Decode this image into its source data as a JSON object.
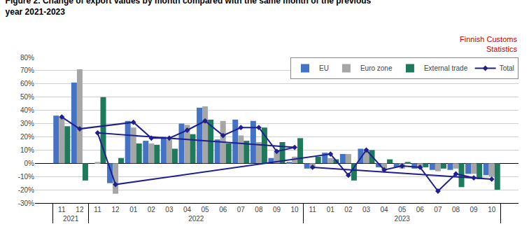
{
  "chart_data": {
    "type": "bar",
    "title": "Figure 2. Change of export values by month compared with the same month of the previous\nyear 2021-2023",
    "annotations": [
      {
        "text": "Finnish Customs\nStatistics",
        "color": "#CC0000"
      }
    ],
    "categories": [
      "11",
      "12",
      "01",
      "02",
      "03",
      "04",
      "05",
      "06",
      "07",
      "08",
      "09",
      "10",
      "11",
      "12",
      "01",
      "02",
      "03",
      "04",
      "05",
      "06",
      "07",
      "08",
      "09",
      "10",
      "11"
    ],
    "category_groups": [
      {
        "label": "2021",
        "count": 2
      },
      {
        "label": "2022",
        "count": 12
      },
      {
        "label": "2023",
        "count": 11
      }
    ],
    "series": [
      {
        "name": "EU",
        "type": "bar",
        "color": "#4472C4",
        "values": [
          36,
          61,
          32,
          17,
          20,
          30,
          42,
          18,
          33,
          32,
          4,
          1,
          0,
          -15,
          8,
          7,
          11,
          -3,
          -3,
          -4,
          -5,
          -5,
          -8,
          -9,
          -4
        ]
      },
      {
        "name": "Euro zone",
        "type": "bar",
        "color": "#A6A6A6",
        "values": [
          35,
          71,
          27,
          15,
          18,
          29,
          43,
          32,
          21,
          16,
          9,
          5,
          1,
          -23,
          4,
          7,
          10,
          -4,
          -4,
          -4,
          -6,
          -4,
          -8,
          -10,
          -4
        ]
      },
      {
        "name": "External trade",
        "type": "bar",
        "color": "#1F7A5C",
        "values": [
          28,
          -13,
          15,
          14,
          11,
          22,
          33,
          15,
          17,
          27,
          16,
          19,
          50,
          4,
          3,
          -13,
          10,
          3,
          1,
          -3,
          -4,
          -18,
          -12,
          -20,
          5
        ]
      },
      {
        "name": "Total",
        "type": "line",
        "color": "#1F1F8F",
        "marker": "diamond",
        "values": [
          35,
          26,
          31,
          19,
          19,
          25,
          32,
          21,
          27,
          27,
          9,
          12,
          23,
          -16,
          7,
          -9,
          10,
          -5,
          -2,
          -3,
          -21,
          -8,
          -11,
          -12,
          -3
        ]
      }
    ],
    "ylim": [
      -30,
      80
    ],
    "yticks": [
      {
        "value": -30,
        "label": "-30%"
      },
      {
        "value": -20,
        "label": "-20%"
      },
      {
        "value": -10,
        "label": "-10%"
      },
      {
        "value": 0,
        "label": "0%"
      },
      {
        "value": 10,
        "label": "10%"
      },
      {
        "value": 20,
        "label": "20%"
      },
      {
        "value": 30,
        "label": "30%"
      },
      {
        "value": 40,
        "label": "40%"
      },
      {
        "value": 50,
        "label": "50%"
      },
      {
        "value": 60,
        "label": "60%"
      },
      {
        "value": 70,
        "label": "70%"
      },
      {
        "value": 80,
        "label": "80%"
      }
    ],
    "grid": true,
    "legend": "upper right"
  }
}
